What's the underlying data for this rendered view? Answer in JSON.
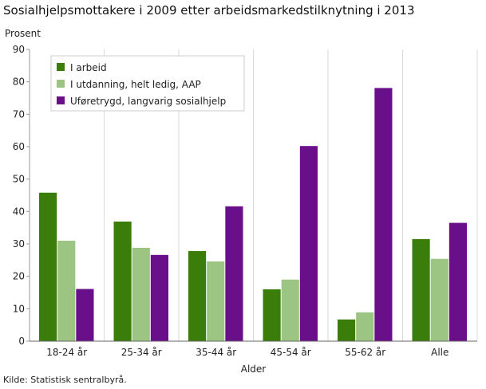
{
  "title": "Sosialhjelpsmottakere i 2009 etter arbeidsmarkedstilknytning i 2013",
  "source": "Kilde: Statistisk sentralbyrå.",
  "chart_data": {
    "type": "bar",
    "title": "Sosialhjelpsmottakere i 2009 etter arbeidsmarkedstilknytning i 2013",
    "xlabel": "Alder",
    "ylabel": "Prosent",
    "ylim": [
      0,
      90
    ],
    "yticks": [
      0,
      10,
      20,
      30,
      40,
      50,
      60,
      70,
      80,
      90
    ],
    "grid": "vertical separators between categories",
    "legend_position": "top-left",
    "categories": [
      "18-24 år",
      "25-34 år",
      "35-44 år",
      "45-54 år",
      "55-62 år",
      "Alle"
    ],
    "series": [
      {
        "name": "I arbeid",
        "color": "#3a7d0a",
        "values": [
          45.8,
          36.9,
          27.8,
          16.0,
          6.7,
          31.5
        ]
      },
      {
        "name": "I utdanning, helt ledig, AAP",
        "color": "#9cc482",
        "values": [
          31.0,
          28.8,
          24.6,
          19.0,
          8.9,
          25.4
        ]
      },
      {
        "name": "Uføretrygd, langvarig sosialhjelp",
        "color": "#6a0f8a",
        "values": [
          16.1,
          26.6,
          41.6,
          60.2,
          78.1,
          36.5
        ]
      }
    ]
  }
}
